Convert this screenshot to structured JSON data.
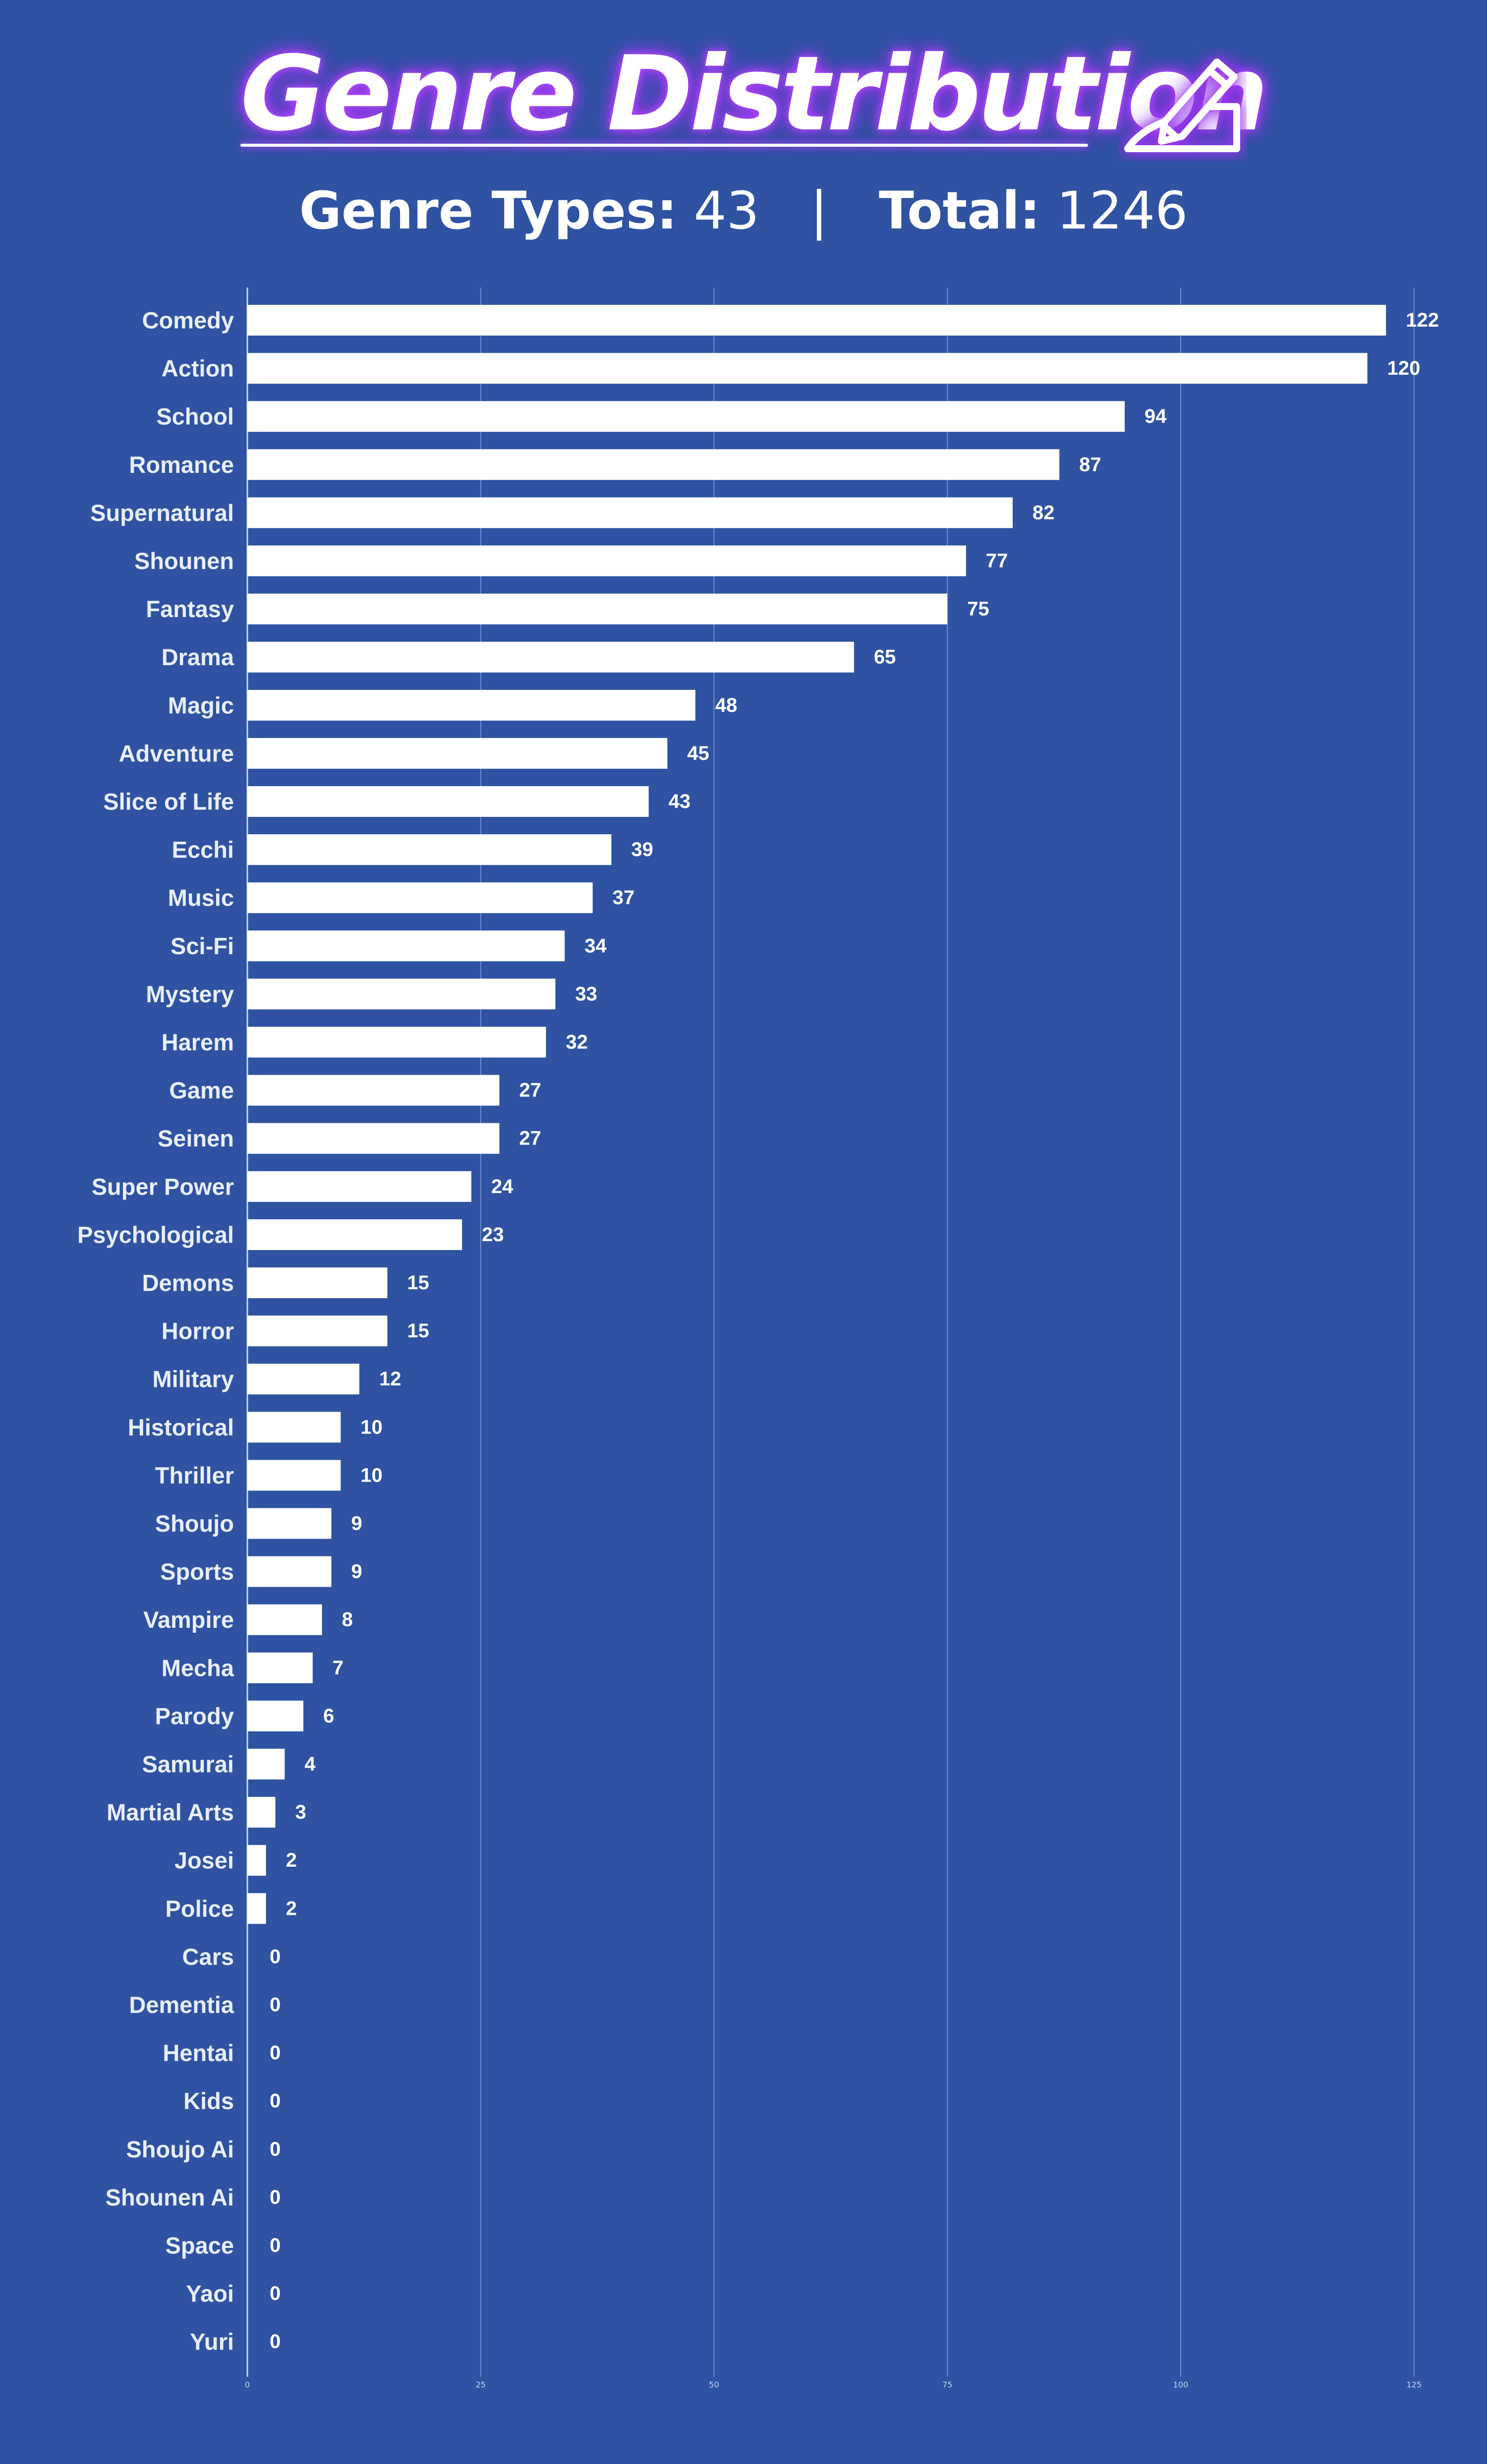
{
  "header": {
    "title": "Genre Distribution",
    "genre_types_label": "Genre Types:",
    "genre_types_value": "43",
    "separator": "|",
    "total_label": "Total:",
    "total_value": "1246",
    "icon": "pencil-writing-icon"
  },
  "colors": {
    "background": "#2f53a2",
    "bar": "#ffffff",
    "gridline": "#6f8fd0",
    "label": "#e9eef9",
    "value_label": "#ffffff",
    "title_glow": "#a53df5"
  },
  "chart_data": {
    "type": "bar",
    "orientation": "horizontal",
    "categories": [
      "Comedy",
      "Action",
      "School",
      "Romance",
      "Supernatural",
      "Shounen",
      "Fantasy",
      "Drama",
      "Magic",
      "Adventure",
      "Slice of Life",
      "Ecchi",
      "Music",
      "Sci-Fi",
      "Mystery",
      "Harem",
      "Game",
      "Seinen",
      "Super Power",
      "Psychological",
      "Demons",
      "Horror",
      "Military",
      "Historical",
      "Thriller",
      "Shoujo",
      "Sports",
      "Vampire",
      "Mecha",
      "Parody",
      "Samurai",
      "Martial Arts",
      "Josei",
      "Police",
      "Cars",
      "Dementia",
      "Hentai",
      "Kids",
      "Shoujo Ai",
      "Shounen Ai",
      "Space",
      "Yaoi",
      "Yuri"
    ],
    "values": [
      122,
      120,
      94,
      87,
      82,
      77,
      75,
      65,
      48,
      45,
      43,
      39,
      37,
      34,
      33,
      32,
      27,
      27,
      24,
      23,
      15,
      15,
      12,
      10,
      10,
      9,
      9,
      8,
      7,
      6,
      4,
      3,
      2,
      2,
      0,
      0,
      0,
      0,
      0,
      0,
      0,
      0,
      0
    ],
    "xlim": [
      0,
      125
    ],
    "xticks": [
      0,
      25,
      50,
      75,
      100,
      125
    ],
    "xtick_labels": [
      "0",
      "25",
      "50",
      "75",
      "100",
      "125"
    ],
    "grid": true,
    "data_labels": true,
    "title": "Genre Distribution"
  }
}
